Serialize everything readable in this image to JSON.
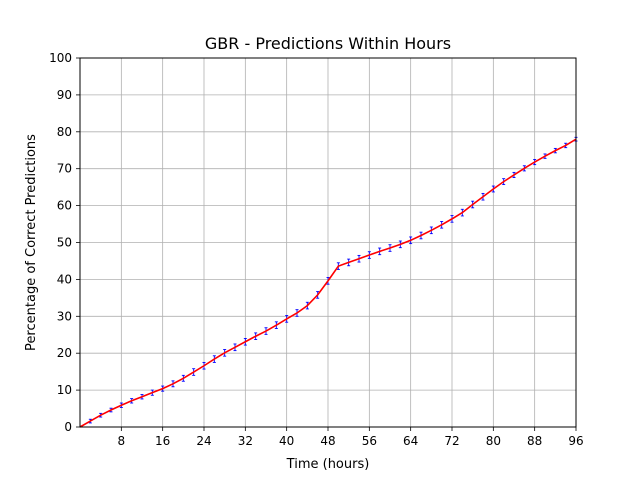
{
  "chart_data": {
    "type": "line",
    "title": "GBR - Predictions Within Hours",
    "xlabel": "Time (hours)",
    "ylabel": "Percentage of Correct Predictions",
    "xlim": [
      0,
      96
    ],
    "ylim": [
      0,
      100
    ],
    "xticks": [
      8,
      16,
      24,
      32,
      40,
      48,
      56,
      64,
      72,
      80,
      88,
      96
    ],
    "yticks": [
      0,
      10,
      20,
      30,
      40,
      50,
      60,
      70,
      80,
      90,
      100
    ],
    "grid": true,
    "colors": {
      "line": "#ff0000",
      "error_bars": "#0000ff",
      "grid": "#b0b0b0"
    },
    "series": [
      {
        "x": [
          0,
          2,
          4,
          6,
          8,
          10,
          12,
          14,
          16,
          18,
          20,
          22,
          24,
          26,
          28,
          30,
          32,
          34,
          36,
          38,
          40,
          42,
          44,
          46,
          48,
          50,
          52,
          54,
          56,
          58,
          60,
          62,
          64,
          66,
          68,
          70,
          72,
          74,
          76,
          78,
          80,
          82,
          84,
          86,
          88,
          90,
          92,
          94,
          96
        ],
        "y": [
          0,
          1.6,
          3.2,
          4.6,
          5.9,
          7.1,
          8.2,
          9.3,
          10.4,
          11.7,
          13.2,
          14.9,
          16.6,
          18.4,
          20.1,
          21.6,
          23.1,
          24.6,
          26.0,
          27.6,
          29.3,
          30.9,
          32.9,
          35.8,
          39.6,
          43.6,
          44.6,
          45.6,
          46.6,
          47.6,
          48.5,
          49.5,
          50.6,
          51.9,
          53.3,
          54.8,
          56.4,
          58.1,
          60.3,
          62.4,
          64.5,
          66.5,
          68.3,
          70.1,
          71.8,
          73.4,
          74.9,
          76.3,
          78.0
        ],
        "error": [
          0,
          0.5,
          0.5,
          0.5,
          0.6,
          0.6,
          0.6,
          0.7,
          0.7,
          0.8,
          0.8,
          0.9,
          0.9,
          0.9,
          0.9,
          0.9,
          0.9,
          0.9,
          0.9,
          0.9,
          0.9,
          0.9,
          0.9,
          0.9,
          0.9,
          0.9,
          0.9,
          0.9,
          0.9,
          0.9,
          0.9,
          0.9,
          0.9,
          0.9,
          0.9,
          0.9,
          0.9,
          0.9,
          0.9,
          0.9,
          0.8,
          0.8,
          0.7,
          0.7,
          0.7,
          0.6,
          0.6,
          0.6,
          0.5
        ]
      }
    ]
  }
}
